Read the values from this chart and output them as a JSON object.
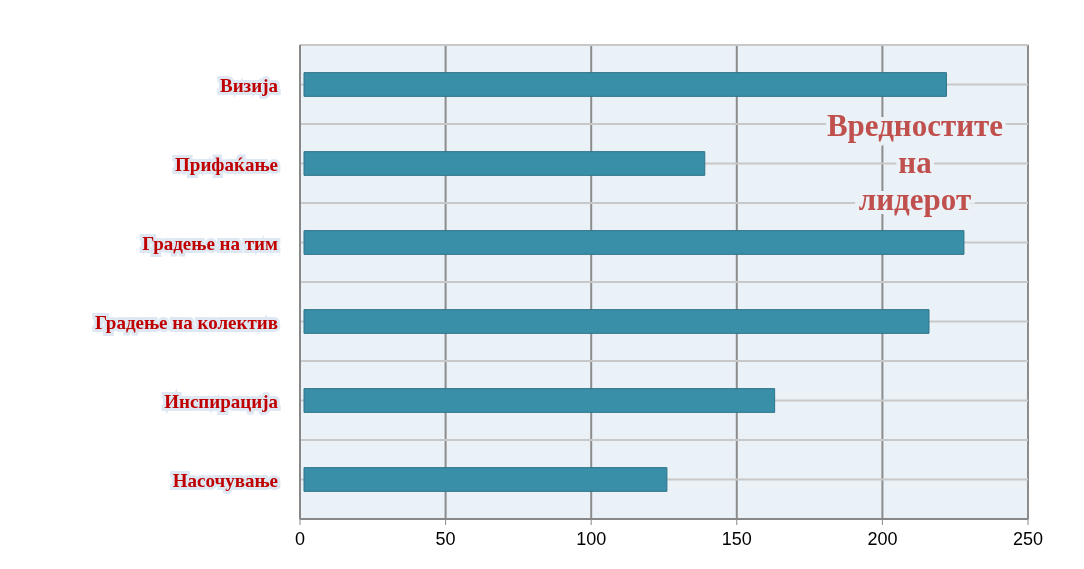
{
  "chart_data": {
    "type": "bar",
    "orientation": "horizontal",
    "categories": [
      "Визија",
      "Прифаќање",
      "Градење на тим",
      "Градење на колектив",
      "Инспирација",
      "Насочување"
    ],
    "values": [
      222,
      139,
      228,
      216,
      163,
      126
    ],
    "color": "#3a8fa8",
    "xlim": [
      0,
      250
    ],
    "xticks": [
      0,
      50,
      100,
      150,
      200,
      250
    ],
    "grid": true,
    "annotations": [
      "Вредностите на лидерот"
    ]
  }
}
